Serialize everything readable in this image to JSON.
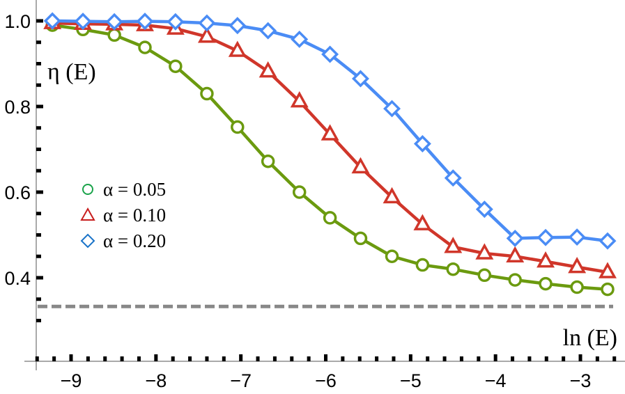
{
  "chart_data": {
    "type": "line",
    "title": "",
    "xlabel": "ln(E)",
    "ylabel": "η(E)",
    "xlim": [
      -9.3,
      -2.6
    ],
    "ylim": [
      0.3,
      1.03
    ],
    "x_ticks": [
      -9,
      -8,
      -7,
      -6,
      -5,
      -4,
      -3
    ],
    "x_tick_labels": [
      "−9",
      "−8",
      "−7",
      "−6",
      "−5",
      "−4",
      "−3"
    ],
    "y_ticks": [
      0.4,
      0.6,
      0.8,
      1.0
    ],
    "y_tick_labels": [
      "0.4",
      "0.6",
      "0.8",
      "1.0"
    ],
    "grid": false,
    "legend_position": "left-middle",
    "x": [
      -9.22,
      -8.86,
      -8.49,
      -8.13,
      -7.77,
      -7.4,
      -7.04,
      -6.68,
      -6.31,
      -5.95,
      -5.59,
      -5.22,
      -4.86,
      -4.5,
      -4.13,
      -3.77,
      -3.41,
      -3.04,
      -2.68
    ],
    "series": [
      {
        "name": "α = 0.05",
        "marker": "circle",
        "color": "#6b9a0f",
        "legend_color": "#1aa34a",
        "values": [
          0.99,
          0.98,
          0.967,
          0.938,
          0.894,
          0.83,
          0.752,
          0.672,
          0.6,
          0.54,
          0.492,
          0.45,
          0.43,
          0.42,
          0.406,
          0.395,
          0.386,
          0.378,
          0.373
        ]
      },
      {
        "name": "α = 0.10",
        "marker": "triangle",
        "color": "#d0362a",
        "legend_color": "#c81e1e",
        "values": [
          0.995,
          0.993,
          0.992,
          0.99,
          0.982,
          0.963,
          0.93,
          0.882,
          0.812,
          0.735,
          0.658,
          0.588,
          0.525,
          0.472,
          0.457,
          0.45,
          0.438,
          0.425,
          0.413
        ]
      },
      {
        "name": "α = 0.20",
        "marker": "diamond",
        "color": "#4a8cf5",
        "legend_color": "#1a73c8",
        "values": [
          1.0,
          0.999,
          0.998,
          0.999,
          0.998,
          0.995,
          0.989,
          0.977,
          0.957,
          0.922,
          0.865,
          0.795,
          0.713,
          0.633,
          0.56,
          0.492,
          0.494,
          0.495,
          0.486
        ]
      }
    ],
    "reference_line": {
      "y": 0.333,
      "style": "dashed",
      "color": "#888888",
      "label": ""
    }
  },
  "axes": {
    "ylabel_text": "η (E)",
    "xlabel_text": "ln (E)"
  },
  "legend": {
    "items": [
      {
        "label": "α = 0.05"
      },
      {
        "label": "α = 0.10"
      },
      {
        "label": "α = 0.20"
      }
    ]
  }
}
